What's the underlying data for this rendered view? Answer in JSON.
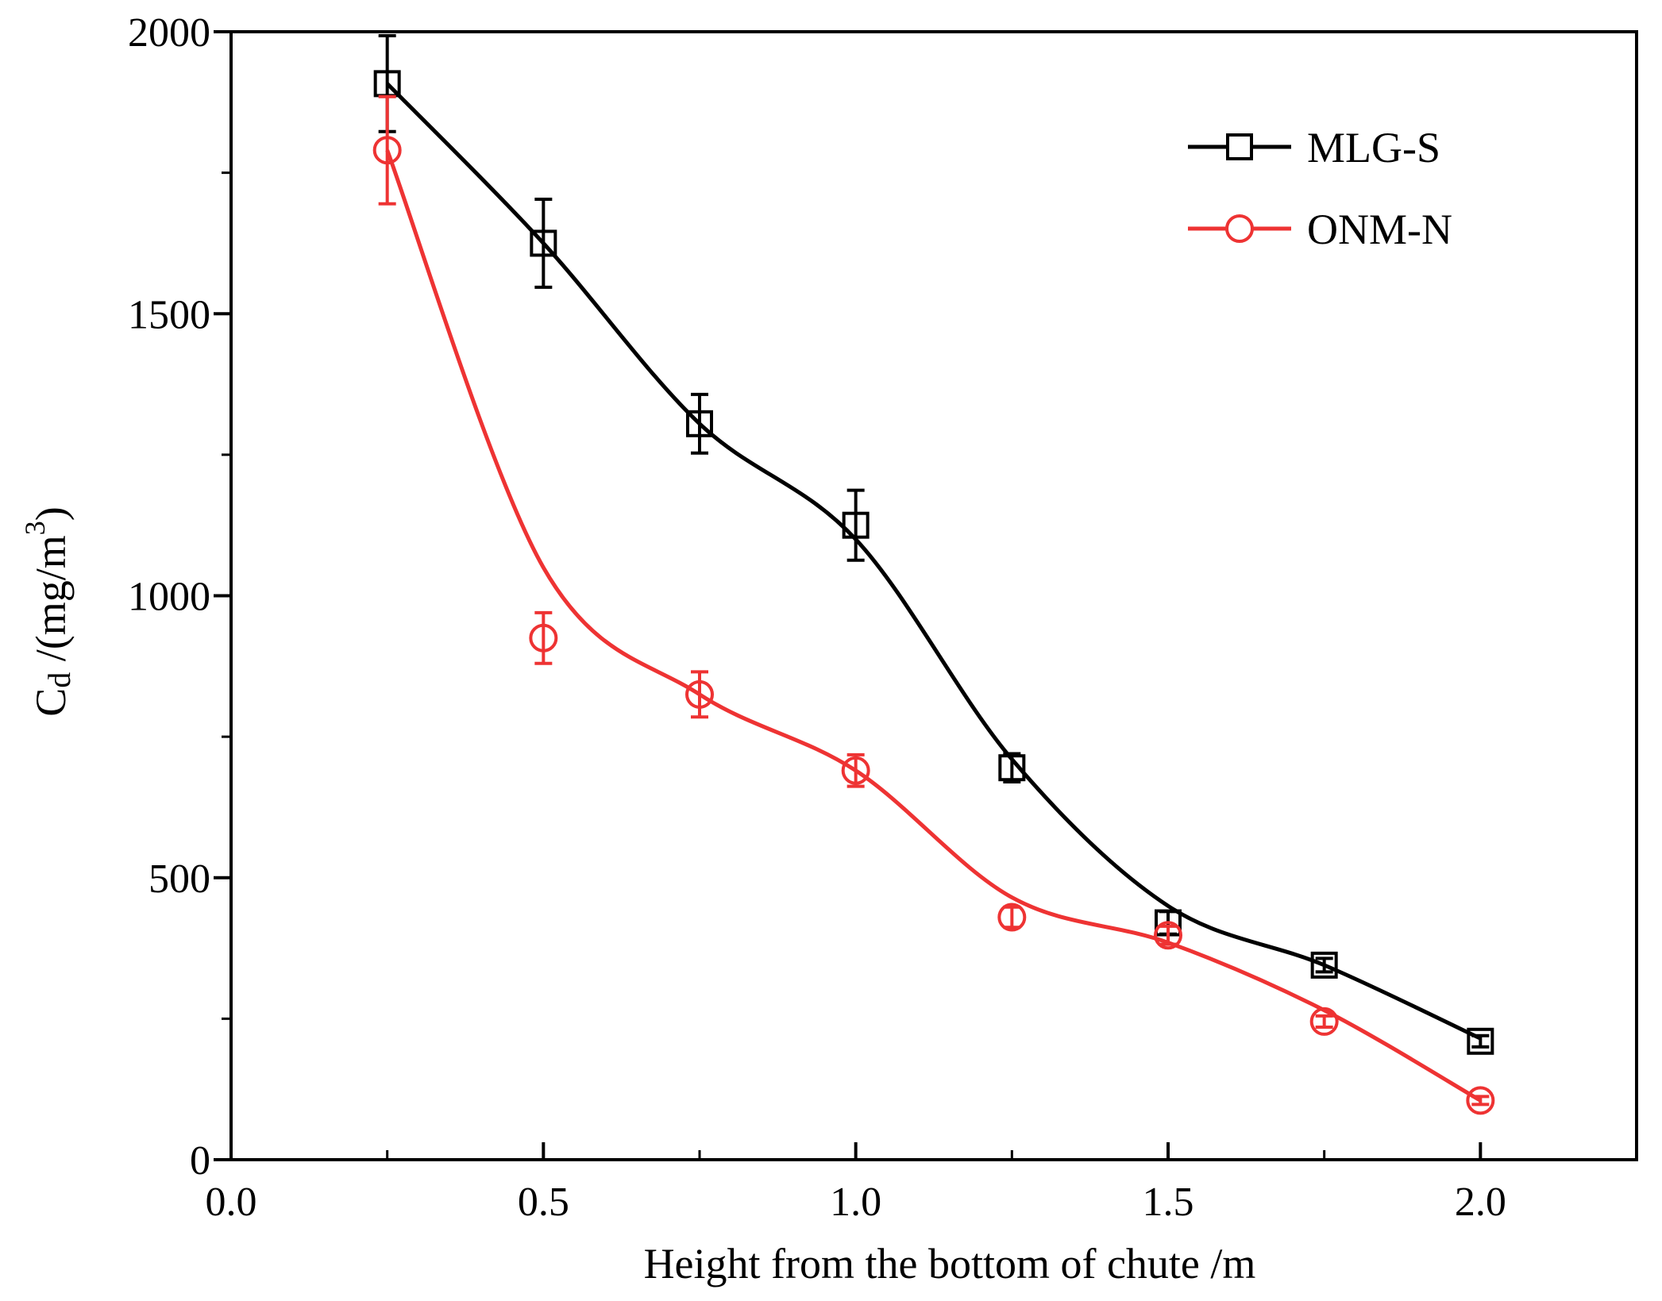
{
  "chart_data": {
    "type": "line",
    "xlabel": "Height from the bottom of chute /m",
    "ylabel": {
      "base": "C",
      "subscript": "d",
      "unit_prefix": " /(mg/m",
      "superscript": "3",
      "unit_suffix": ")"
    },
    "xlim": [
      0.0,
      2.25
    ],
    "ylim": [
      0,
      2000
    ],
    "x_ticks": [
      {
        "value": 0.0,
        "label": "0.0"
      },
      {
        "value": 0.5,
        "label": "0.5"
      },
      {
        "value": 1.0,
        "label": "1.0"
      },
      {
        "value": 1.5,
        "label": "1.5"
      },
      {
        "value": 2.0,
        "label": "2.0"
      }
    ],
    "x_minor_ticks": [
      0.25,
      0.75,
      1.25,
      1.75,
      2.25
    ],
    "y_ticks": [
      {
        "value": 0,
        "label": "0"
      },
      {
        "value": 500,
        "label": "500"
      },
      {
        "value": 1000,
        "label": "1000"
      },
      {
        "value": 1500,
        "label": "1500"
      },
      {
        "value": 2000,
        "label": "2000"
      }
    ],
    "y_minor_ticks": [
      250,
      750,
      1250,
      1750
    ],
    "grid": false,
    "legend_position": "top-right",
    "series": [
      {
        "name": "MLG-S",
        "color": "#000000",
        "marker": "square",
        "x": [
          0.25,
          0.5,
          0.75,
          1.0,
          1.25,
          1.5,
          1.75,
          2.0
        ],
        "y": [
          1908,
          1625,
          1305,
          1125,
          695,
          420,
          345,
          210
        ],
        "err": [
          85,
          78,
          52,
          62,
          25,
          20,
          12,
          10
        ],
        "curve_x": [
          0.25,
          0.5,
          0.75,
          1.0,
          1.25,
          1.5,
          1.75,
          2.0
        ],
        "curve_y": [
          1908,
          1625,
          1305,
          1100,
          710,
          450,
          345,
          215
        ]
      },
      {
        "name": "ONM-N",
        "color": "#ee3333",
        "marker": "circle",
        "x": [
          0.25,
          0.5,
          0.75,
          1.0,
          1.25,
          1.5,
          1.75,
          2.0
        ],
        "y": [
          1790,
          925,
          825,
          690,
          430,
          398,
          245,
          105
        ],
        "err": [
          95,
          45,
          40,
          28,
          18,
          16,
          10,
          7
        ],
        "curve_x": [
          0.25,
          0.5,
          0.75,
          1.0,
          1.25,
          1.5,
          1.75,
          2.0
        ],
        "curve_y": [
          1790,
          1050,
          825,
          690,
          465,
          385,
          265,
          105
        ]
      }
    ]
  }
}
